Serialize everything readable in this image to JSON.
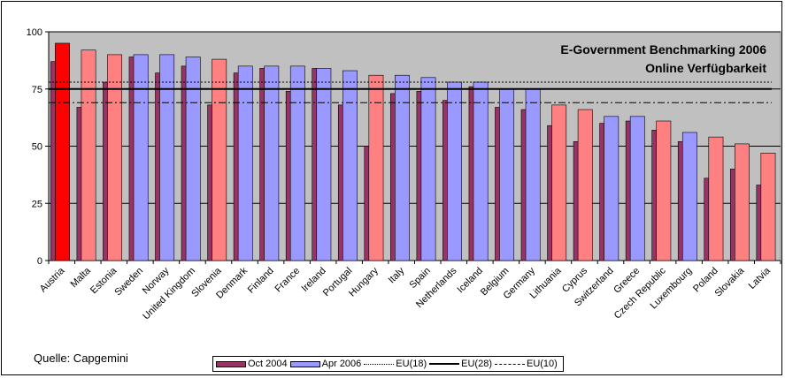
{
  "source_label": "Quelle:  Capgemini",
  "chart_data": {
    "type": "bar",
    "title": "E-Government Benchmarking 2006",
    "subtitle": "Online Verfügbarkeit",
    "ylim": [
      0,
      100
    ],
    "yticks": [
      0,
      25,
      50,
      75,
      100
    ],
    "grid": true,
    "legend_position": "bottom",
    "categories": [
      "Austria",
      "Malta",
      "Estonia",
      "Sweden",
      "Norway",
      "United Kingdom",
      "Slovenia",
      "Denmark",
      "Finland",
      "France",
      "Ireland",
      "Portugal",
      "Hungary",
      "Italy",
      "Spain",
      "Netherlands",
      "Iceland",
      "Belgium",
      "Germany",
      "Lithuania",
      "Cyprus",
      "Switzerland",
      "Greece",
      "Czech Republic",
      "Luxembourg",
      "Poland",
      "Slovakia",
      "Latvia"
    ],
    "series": [
      {
        "name": "Oct 2004",
        "color": "#993366",
        "values": [
          87,
          67,
          78,
          89,
          82,
          85,
          68,
          82,
          84,
          74,
          84,
          68,
          50,
          73,
          74,
          70,
          76,
          67,
          66,
          59,
          52,
          60,
          61,
          57,
          52,
          36,
          40,
          33
        ]
      },
      {
        "name": "Apr 2006",
        "color": "#9999FF",
        "values": [
          95,
          92,
          90,
          90,
          90,
          89,
          88,
          85,
          85,
          85,
          84,
          83,
          81,
          81,
          80,
          78,
          78,
          75,
          75,
          68,
          66,
          63,
          63,
          61,
          56,
          54,
          51,
          47
        ]
      }
    ],
    "apr2006_group_colors": {
      "EU10": "#FF8080",
      "highlight": "#FF0000",
      "other": "#9999FF"
    },
    "apr2006_group": [
      "highlight",
      "EU10",
      "EU10",
      "other",
      "other",
      "other",
      "EU10",
      "other",
      "other",
      "other",
      "other",
      "other",
      "EU10",
      "other",
      "other",
      "other",
      "other",
      "other",
      "other",
      "EU10",
      "EU10",
      "other",
      "other",
      "EU10",
      "other",
      "EU10",
      "EU10",
      "EU10"
    ],
    "reference_lines": [
      {
        "name": "EU(18)",
        "value": 78,
        "style": "dotted"
      },
      {
        "name": "EU(28)",
        "value": 75,
        "style": "solid"
      },
      {
        "name": "EU(10)",
        "value": 69,
        "style": "dashdot"
      }
    ],
    "background_color": "#C0C0C0"
  }
}
